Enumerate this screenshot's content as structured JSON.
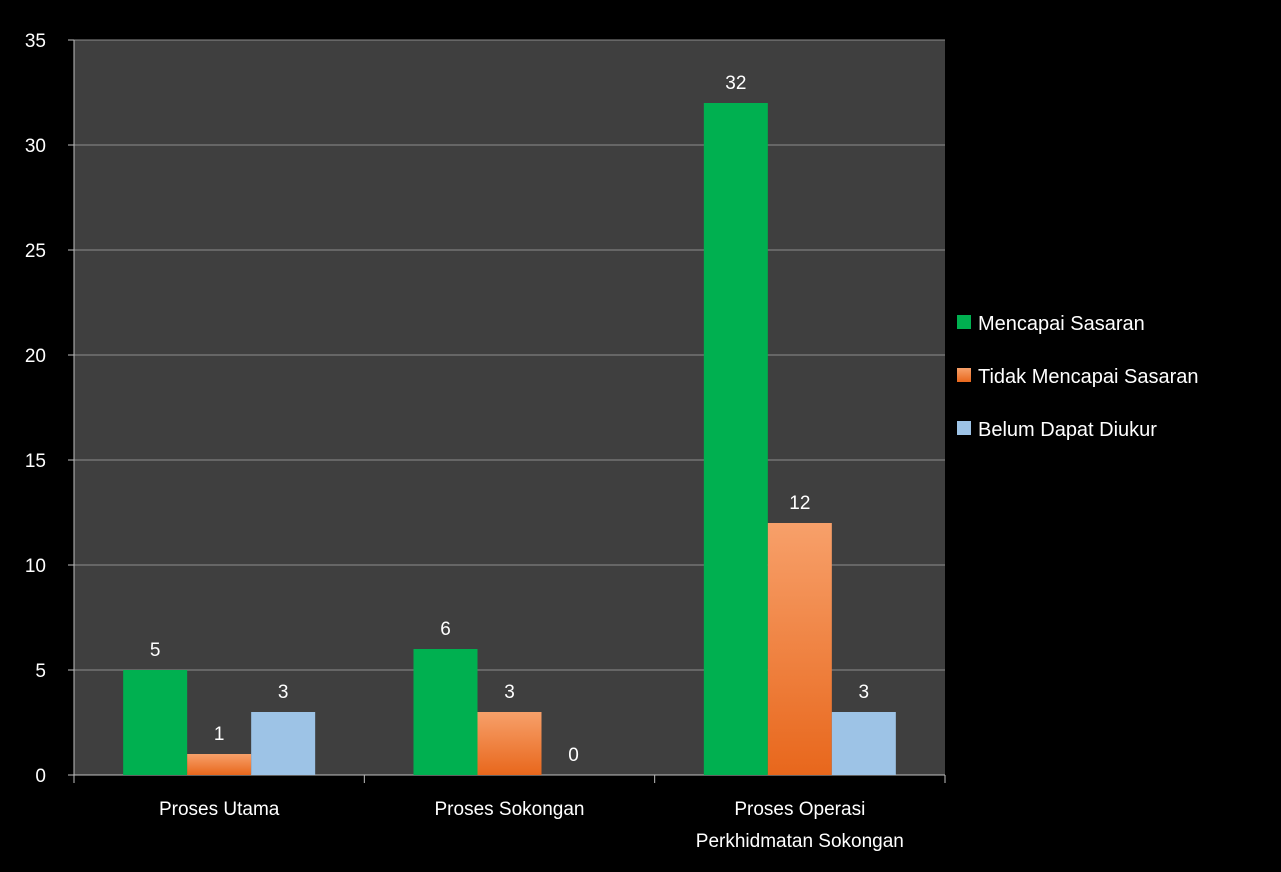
{
  "chart_data": {
    "type": "bar",
    "categories": [
      "Proses Utama",
      "Proses Sokongan",
      "Proses Operasi Perkhidmatan Sokongan"
    ],
    "category_label_lines": [
      [
        "Proses Utama"
      ],
      [
        "Proses Sokongan"
      ],
      [
        "Proses Operasi",
        "Perkhidmatan Sokongan"
      ]
    ],
    "series": [
      {
        "name": "Mencapai Sasaran",
        "values": [
          5,
          6,
          32
        ],
        "color": "#00b050"
      },
      {
        "name": "Tidak Mencapai Sasaran",
        "values": [
          1,
          3,
          12
        ],
        "color": "#f5813a"
      },
      {
        "name": "Belum Dapat Diukur",
        "values": [
          3,
          0,
          3
        ],
        "color": "#9dc3e6"
      }
    ],
    "ylim": [
      0,
      35
    ],
    "yticks": [
      0,
      5,
      10,
      15,
      20,
      25,
      30,
      35
    ],
    "title": "",
    "xlabel": "",
    "ylabel": "",
    "grid": true,
    "legend_position": "right",
    "plot_background": "#3f3f3f",
    "page_background": "#000000"
  }
}
